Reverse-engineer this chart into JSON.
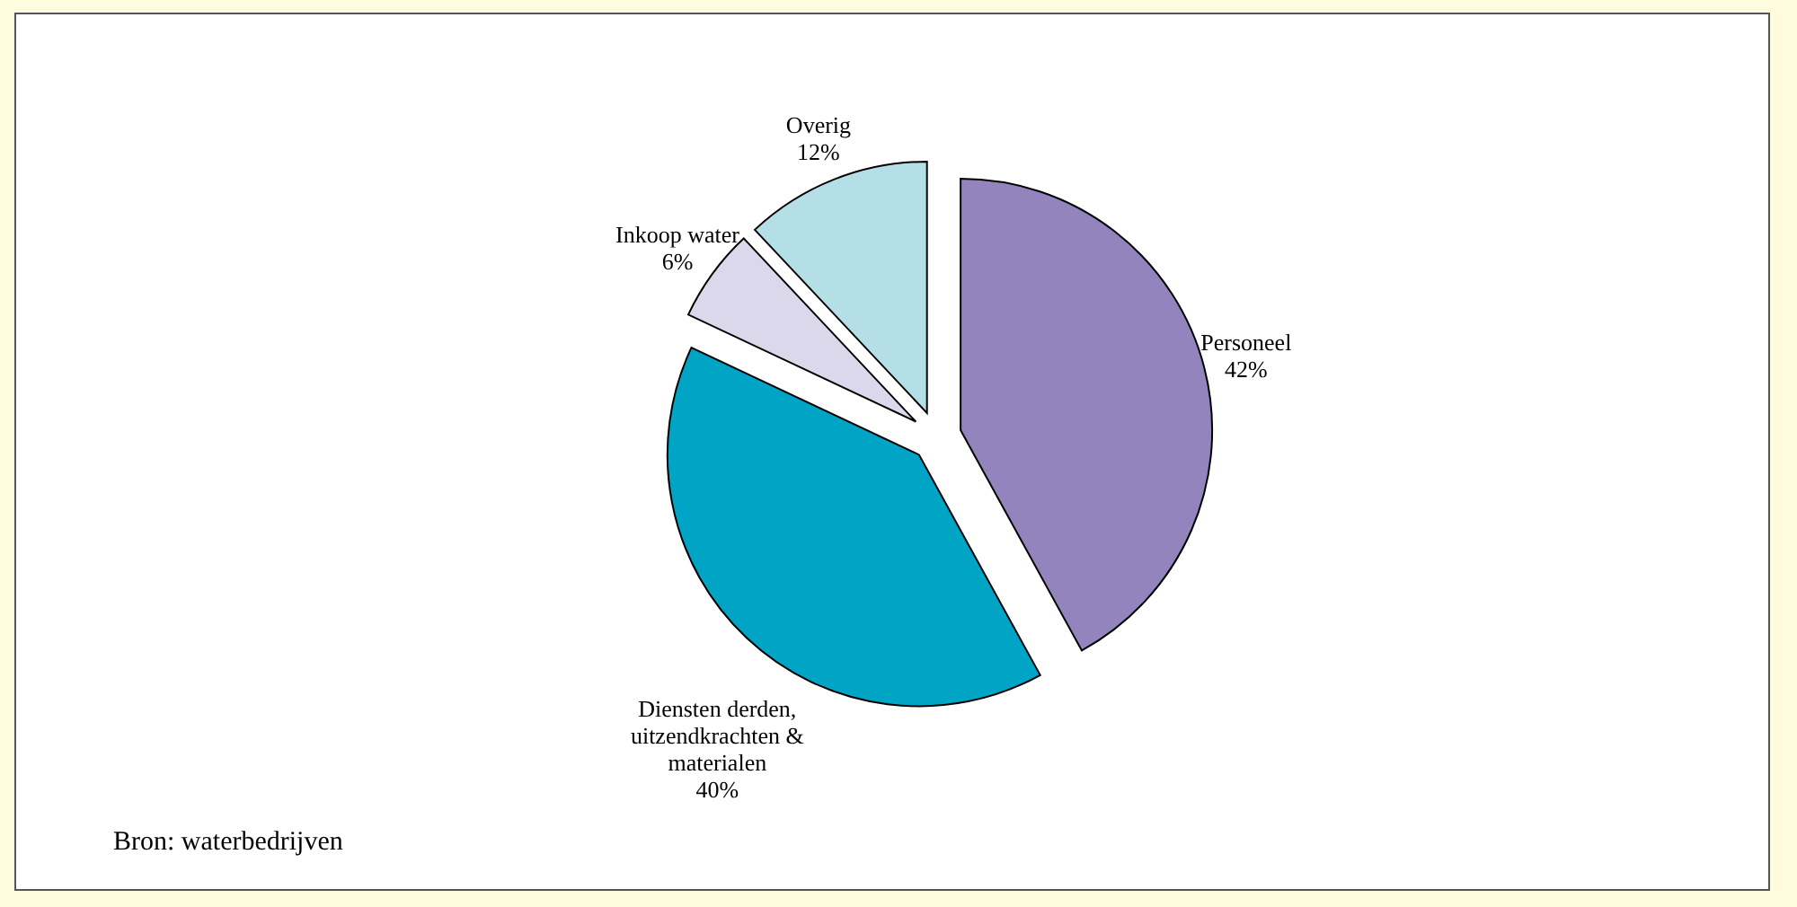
{
  "chart_data": {
    "type": "pie",
    "categories": [
      "Personeel",
      "Diensten derden, uitzendkrachten & materialen",
      "Inkoop water",
      "Overig"
    ],
    "values": [
      42,
      40,
      6,
      12
    ],
    "colors": [
      "#9484bd",
      "#00a5c6",
      "#dcd8ec",
      "#b4dfe6"
    ],
    "value_labels": [
      "42%",
      "40%",
      "6%",
      "12%"
    ],
    "annotations": [
      "Bron: waterbedrijven"
    ]
  }
}
